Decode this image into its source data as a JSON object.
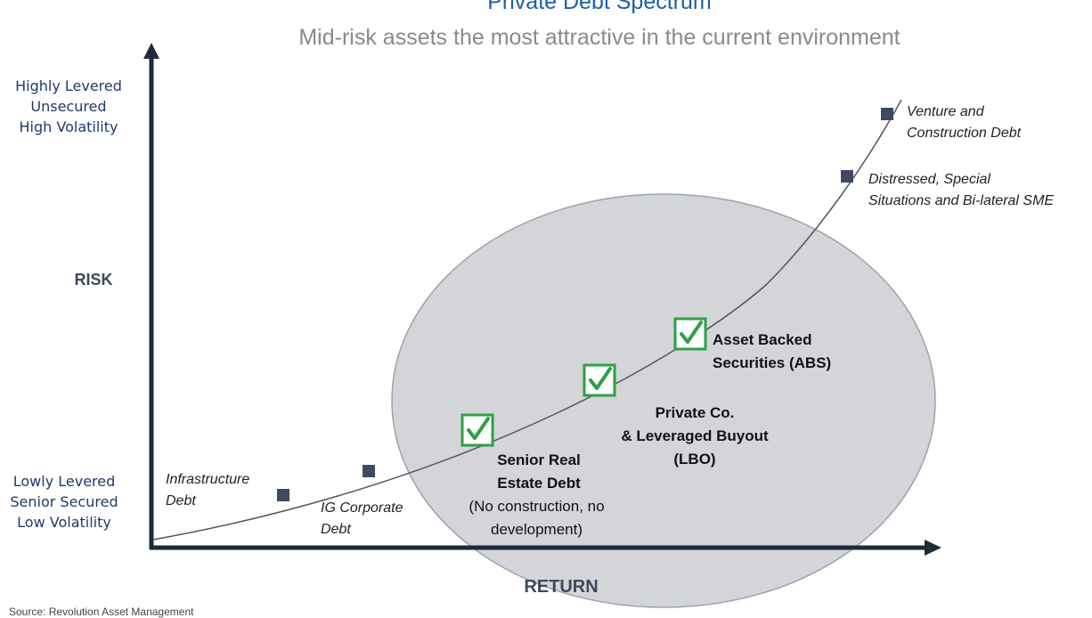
{
  "chart_data": {
    "type": "scatter",
    "title": "Private Debt Spectrum",
    "subtitle": "Mid-risk assets the most attractive in the current environment",
    "xlabel": "RETURN",
    "ylabel": "RISK",
    "y_low_label": "Lowly Levered\nSenior Secured\nLow Volatility",
    "y_high_label": "Highly Levered\nUnsecured\nHigh Volatility",
    "points": [
      {
        "label": "Infrastructure\nDebt",
        "marker": "square"
      },
      {
        "label": "IG Corporate\nDebt",
        "marker": "square"
      },
      {
        "label": "Senior Real\nEstate Debt",
        "note": "(No construction, no\ndevelopment)",
        "marker": "check"
      },
      {
        "label": "Private Co.\n& Leveraged Buyout\n(LBO)",
        "marker": "check"
      },
      {
        "label": "Asset Backed\nSecurities (ABS)",
        "marker": "check"
      },
      {
        "label": "Distressed, Special\nSituations and Bi-lateral SME",
        "marker": "square"
      },
      {
        "label": "Venture and\nConstruction Debt",
        "marker": "square"
      }
    ],
    "source": "Source: Revolution Asset Management"
  },
  "colors": {
    "title": "#1f5fa8",
    "axis": "#1e2a3a",
    "marker": "#3d4a61",
    "check": "#2ea043",
    "highlight_ellipse": "#d3d5d9"
  }
}
